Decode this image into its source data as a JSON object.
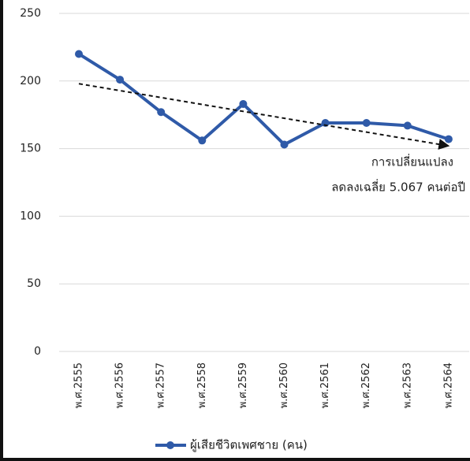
{
  "chart_data": {
    "type": "line",
    "categories": [
      "พ.ศ.2555",
      "พ.ศ.2556",
      "พ.ศ.2557",
      "พ.ศ.2558",
      "พ.ศ.2559",
      "พ.ศ.2560",
      "พ.ศ.2561",
      "พ.ศ.2562",
      "พ.ศ.2563",
      "พ.ศ.2564"
    ],
    "series": [
      {
        "name": "ผู้เสียชีวิตเพศชาย (คน)",
        "color": "#2f5aa8",
        "values": [
          220,
          201,
          177,
          156,
          183,
          153,
          169,
          169,
          167,
          157
        ]
      }
    ],
    "trend": {
      "values": [
        198,
        152
      ]
    },
    "annotations": [
      "การเปลี่ยนแปลง",
      "ลดลงเฉลี่ย 5.067 คนต่อปี"
    ],
    "ylim": [
      0,
      250
    ],
    "yticks": [
      0,
      50,
      100,
      150,
      200,
      250
    ],
    "grid": true,
    "legend": "bottom"
  }
}
